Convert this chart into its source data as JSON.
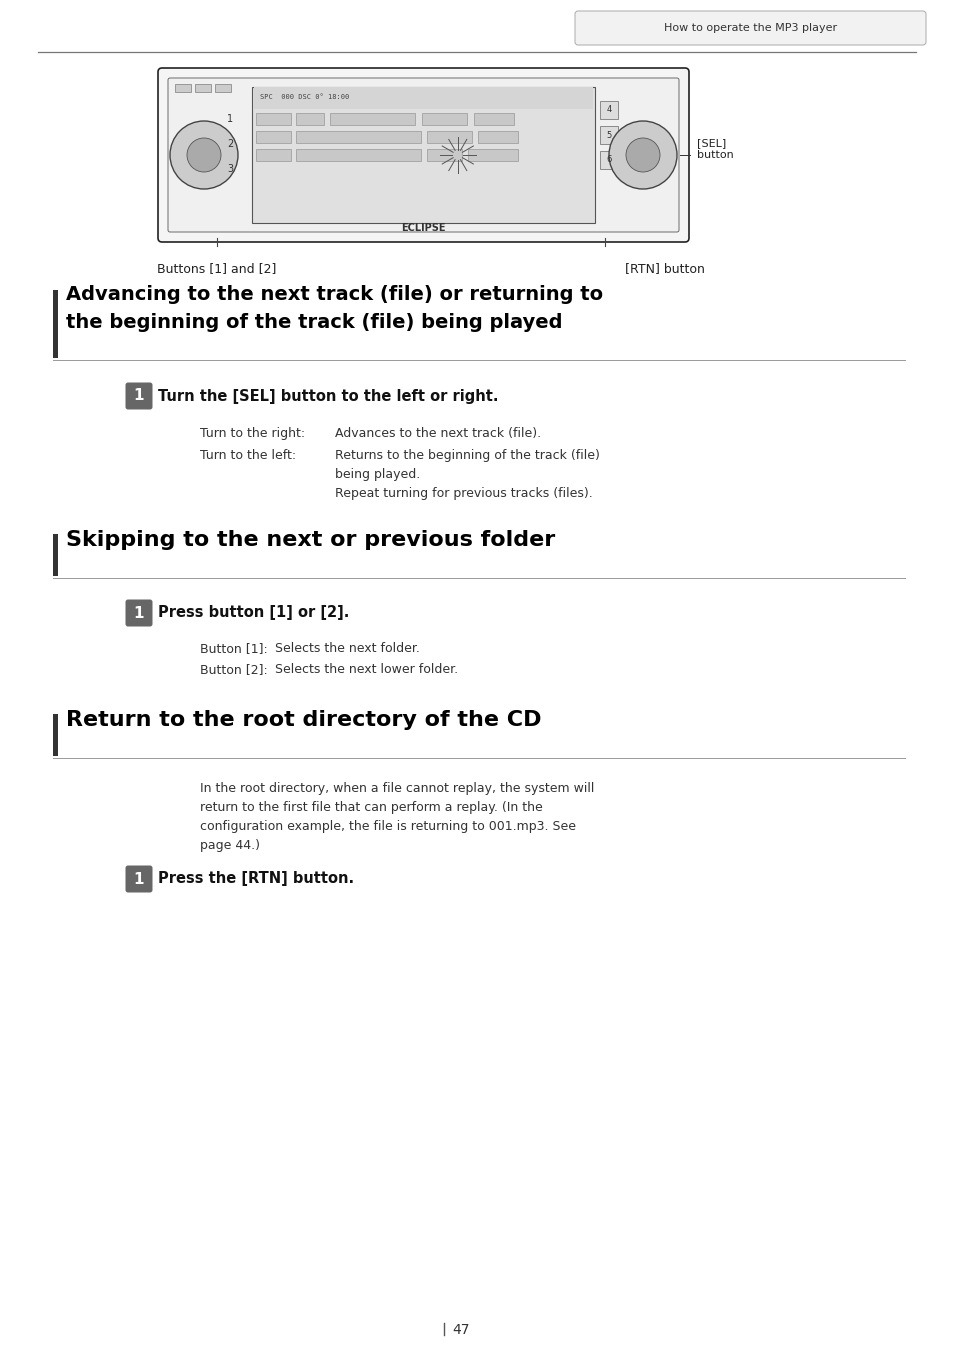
{
  "page_bg": "#ffffff",
  "header_tab_text": "How to operate the MP3 player",
  "header_tab_bg": "#f2f2f2",
  "header_tab_border": "#aaaaaa",
  "top_line_color": "#777777",
  "diagram_caption_left": "Buttons [1] and [2]",
  "diagram_caption_right": "[RTN] button",
  "diagram_label_sel": "[SEL]\nbutton",
  "section1_title_line1": "Advancing to the next track (file) or returning to",
  "section1_title_line2": "the beginning of the track (file) being played",
  "section1_left_bar_color": "#333333",
  "section1_underline_color": "#999999",
  "step1_text": "Turn the [SEL] button to the left or right.",
  "step1_detail1_label": "Turn to the right:",
  "step1_detail1_text": "Advances to the next track (file).",
  "step1_detail2_label": "Turn to the left:",
  "step1_detail2_text1": "Returns to the beginning of the track (file)",
  "step1_detail2_text2": "being played.",
  "step1_detail2_text3": "Repeat turning for previous tracks (files).",
  "section2_title": "Skipping to the next or previous folder",
  "section2_left_bar_color": "#333333",
  "section2_underline_color": "#999999",
  "step2_text": "Press button [1] or [2].",
  "step2_detail1_label": "Button [1]:",
  "step2_detail1_text": "Selects the next folder.",
  "step2_detail2_label": "Button [2]:",
  "step2_detail2_text": "Selects the next lower folder.",
  "section3_title": "Return to the root directory of the CD",
  "section3_left_bar_color": "#333333",
  "section3_underline_color": "#999999",
  "section3_body_line1": "In the root directory, when a file cannot replay, the system will",
  "section3_body_line2": "return to the first file that can perform a replay. (In the",
  "section3_body_line3": "configuration example, the file is returning to 001.mp3. See",
  "section3_body_line4": "page 44.)",
  "step3_text": "Press the [RTN] button.",
  "page_number": "47",
  "step_badge_bg": "#666666",
  "step_badge_text_color": "#ffffff"
}
